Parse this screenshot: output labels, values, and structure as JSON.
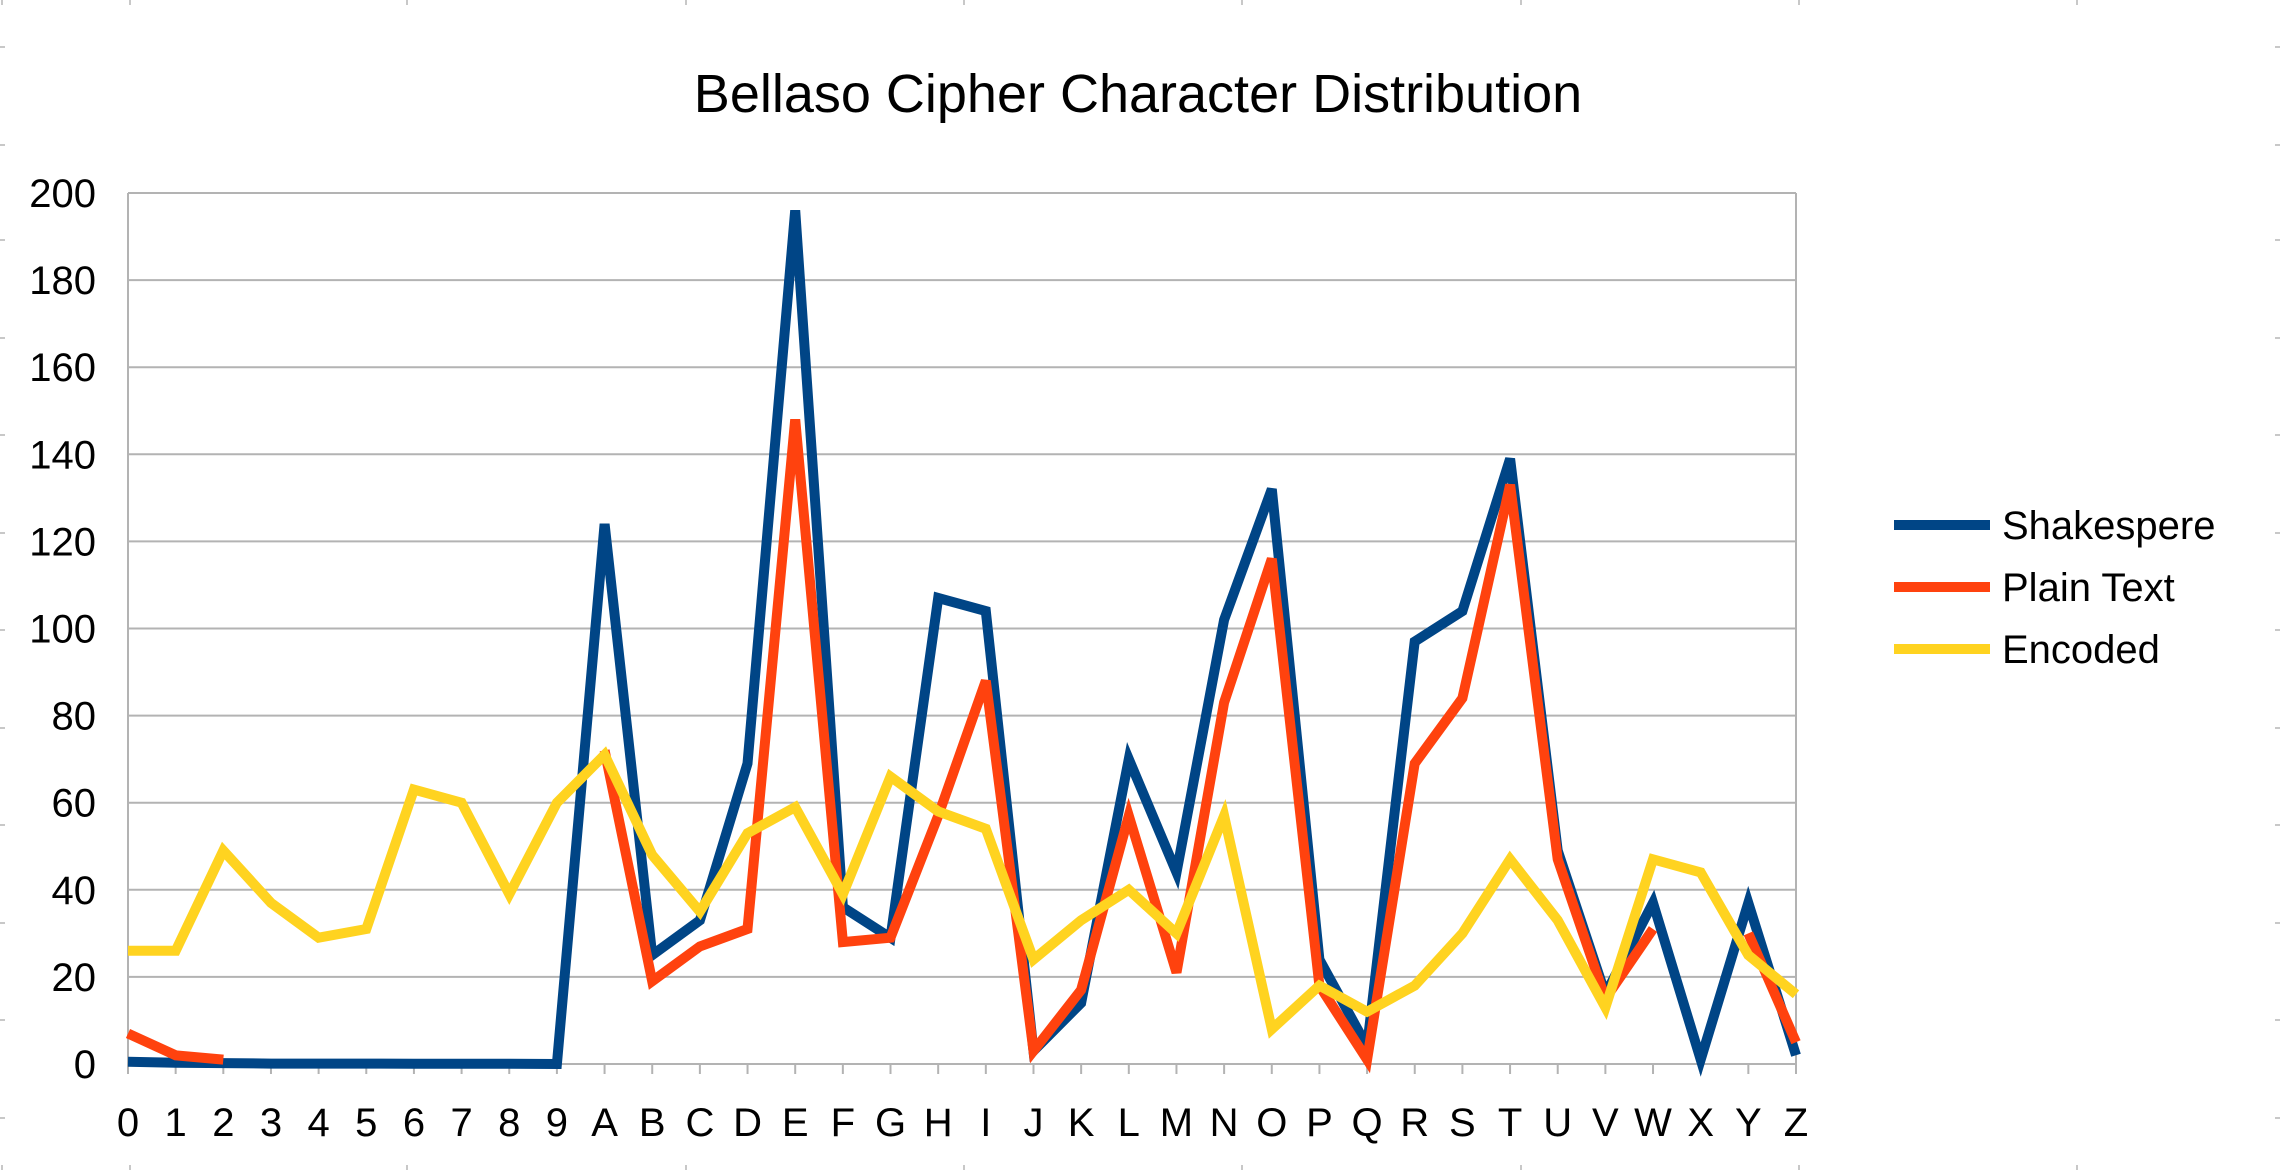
{
  "chart_data": {
    "type": "line",
    "title": "Bellaso Cipher Character Distribution",
    "categories": [
      "0",
      "1",
      "2",
      "3",
      "4",
      "5",
      "6",
      "7",
      "8",
      "9",
      "A",
      "B",
      "C",
      "D",
      "E",
      "F",
      "G",
      "H",
      "I",
      "J",
      "K",
      "L",
      "M",
      "N",
      "O",
      "P",
      "Q",
      "R",
      "S",
      "T",
      "U",
      "V",
      "W",
      "X",
      "Y",
      "Z"
    ],
    "ylim": [
      0,
      200
    ],
    "yticks": [
      0,
      20,
      40,
      60,
      80,
      100,
      120,
      140,
      160,
      180,
      200
    ],
    "grid": true,
    "legend_position": "right",
    "series": [
      {
        "name": "Shakespere",
        "color": "#004586",
        "values": [
          0.5,
          0.3,
          0.2,
          0.1,
          0.1,
          0.1,
          0.05,
          0.05,
          0.05,
          0,
          124,
          25,
          33,
          69,
          196,
          36,
          29,
          107,
          104,
          3,
          14,
          70,
          44,
          102,
          132,
          24,
          4,
          97,
          104,
          139,
          49,
          16,
          37,
          1,
          37,
          2
        ]
      },
      {
        "name": "Plain Text",
        "color": "#ff420e",
        "values": [
          7,
          2,
          1,
          null,
          null,
          null,
          null,
          null,
          null,
          null,
          72,
          19,
          27,
          31,
          148,
          28,
          29,
          57,
          88,
          3,
          17,
          57,
          21,
          83,
          116,
          18,
          1,
          69,
          84,
          133,
          47,
          15,
          31,
          null,
          30,
          5
        ]
      },
      {
        "name": "Encoded",
        "color": "#ffd320",
        "values": [
          26,
          26,
          49,
          37,
          29,
          31,
          63,
          60,
          39,
          60,
          71,
          48,
          35,
          53,
          59,
          39,
          66,
          58,
          54,
          24,
          33,
          40,
          30,
          57,
          8,
          18,
          12,
          18,
          30,
          47,
          33,
          13,
          47,
          44,
          25,
          16
        ]
      }
    ]
  }
}
